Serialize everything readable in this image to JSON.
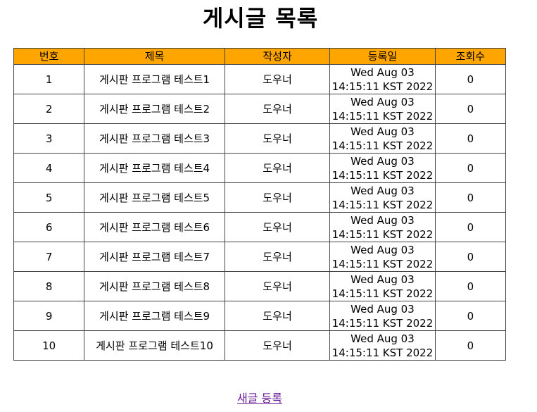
{
  "page": {
    "title": "게시글 목록",
    "new_post_link": "새글 등록"
  },
  "table": {
    "headers": [
      "번호",
      "제목",
      "작성자",
      "등록일",
      "조회수"
    ],
    "rows": [
      {
        "no": "1",
        "title": "게시판 프로그램 테스트1",
        "writer": "도우너",
        "date_line1": "Wed Aug 03",
        "date_line2": "14:15:11 KST 2022",
        "hits": "0"
      },
      {
        "no": "2",
        "title": "게시판 프로그램 테스트2",
        "writer": "도우너",
        "date_line1": "Wed Aug 03",
        "date_line2": "14:15:11 KST 2022",
        "hits": "0"
      },
      {
        "no": "3",
        "title": "게시판 프로그램 테스트3",
        "writer": "도우너",
        "date_line1": "Wed Aug 03",
        "date_line2": "14:15:11 KST 2022",
        "hits": "0"
      },
      {
        "no": "4",
        "title": "게시판 프로그램 테스트4",
        "writer": "도우너",
        "date_line1": "Wed Aug 03",
        "date_line2": "14:15:11 KST 2022",
        "hits": "0"
      },
      {
        "no": "5",
        "title": "게시판 프로그램 테스트5",
        "writer": "도우너",
        "date_line1": "Wed Aug 03",
        "date_line2": "14:15:11 KST 2022",
        "hits": "0"
      },
      {
        "no": "6",
        "title": "게시판 프로그램 테스트6",
        "writer": "도우너",
        "date_line1": "Wed Aug 03",
        "date_line2": "14:15:11 KST 2022",
        "hits": "0"
      },
      {
        "no": "7",
        "title": "게시판 프로그램 테스트7",
        "writer": "도우너",
        "date_line1": "Wed Aug 03",
        "date_line2": "14:15:11 KST 2022",
        "hits": "0"
      },
      {
        "no": "8",
        "title": "게시판 프로그램 테스트8",
        "writer": "도우너",
        "date_line1": "Wed Aug 03",
        "date_line2": "14:15:11 KST 2022",
        "hits": "0"
      },
      {
        "no": "9",
        "title": "게시판 프로그램 테스트9",
        "writer": "도우너",
        "date_line1": "Wed Aug 03",
        "date_line2": "14:15:11 KST 2022",
        "hits": "0"
      },
      {
        "no": "10",
        "title": "게시판 프로그램 테스트10",
        "writer": "도우너",
        "date_line1": "Wed Aug 03",
        "date_line2": "14:15:11 KST 2022",
        "hits": "0"
      }
    ]
  },
  "colors": {
    "header_bg": "#ffa500",
    "border": "#444444",
    "link": "#6a1b9a"
  }
}
